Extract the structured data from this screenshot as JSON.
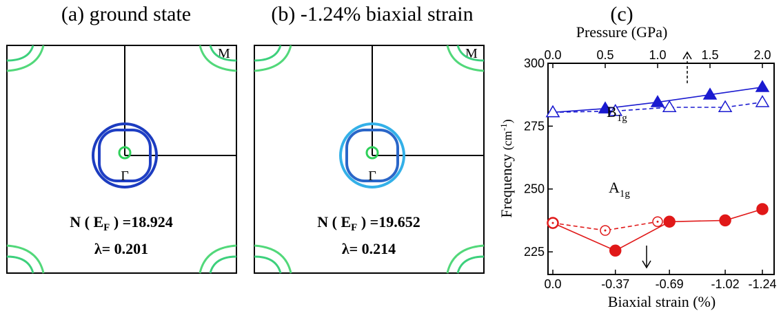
{
  "panel_a": {
    "title": "(a) ground state",
    "corner_label": "M",
    "gamma_label": "Γ",
    "nef_prefix": "N ( E",
    "nef_sub": "F",
    "nef_value": " ) =18.924",
    "lambda_text": "λ= 0.201",
    "colors": {
      "outer_ring": "#1c3cc0",
      "inner_ring": "#1f3fc4",
      "center": "#2fd05a",
      "corner": "#3ad08a"
    }
  },
  "panel_b": {
    "title": "(b) -1.24% biaxial strain",
    "corner_label": "M",
    "gamma_label": "Γ",
    "nef_prefix": "N ( E",
    "nef_sub": "F",
    "nef_value": " ) =19.652",
    "lambda_text": "λ= 0.214",
    "colors": {
      "outer_ring": "#33b0e8",
      "inner_ring": "#2a66c8",
      "center": "#2fd05a",
      "corner": "#3ad08a"
    }
  },
  "chart_data": {
    "type": "line",
    "panel_label": "(c)",
    "xlabel": "Biaxial strain (%)",
    "x2label": "Pressure (GPa)",
    "ylabel": "Frequency",
    "ylabel_unit_main": "(cm",
    "ylabel_unit_sup": "-1",
    "ylabel_unit_close": ")",
    "categories": [
      "0.0",
      "-0.37",
      "-0.69",
      "-1.02",
      "-1.24"
    ],
    "x": [
      0,
      0.37,
      0.69,
      1.02,
      1.24
    ],
    "x_top_ticks": [
      "0.0",
      "0.5",
      "1.0",
      "1.5",
      "2.0"
    ],
    "x_top_values": [
      0,
      0.5,
      1.0,
      1.5,
      2.0
    ],
    "ylim": [
      216,
      300
    ],
    "yticks": [
      225,
      250,
      275,
      300
    ],
    "series": [
      {
        "group": "B1g",
        "axis": "top",
        "marker": "filled-triangle",
        "line": "solid",
        "color": "#1a1ad0",
        "x": [
          0,
          0.5,
          1.0,
          1.5,
          2.0
        ],
        "values": [
          280.5,
          282.0,
          284.5,
          287.5,
          290.5
        ]
      },
      {
        "group": "B1g",
        "axis": "bottom",
        "marker": "open-triangle",
        "line": "dashed",
        "color": "#1a1ad0",
        "x": [
          0,
          0.37,
          0.69,
          1.02,
          1.24
        ],
        "values": [
          280.5,
          281.0,
          282.5,
          282.5,
          284.5
        ]
      },
      {
        "group": "A1g",
        "axis": "bottom",
        "marker": "filled-circle",
        "line": "solid",
        "color": "#e01818",
        "x": [
          0,
          0.37,
          0.69,
          1.02,
          1.24
        ],
        "values": [
          236.5,
          225.5,
          237.0,
          237.5,
          242.0
        ]
      },
      {
        "group": "A1g",
        "axis": "top",
        "marker": "open-circle",
        "line": "dashed",
        "color": "#e01818",
        "x": [
          0,
          0.5,
          1.0
        ],
        "values": [
          236.5,
          233.5,
          237.0
        ]
      }
    ],
    "annotations": {
      "b1g_main": "B",
      "b1g_sub": "1g",
      "a1g_main": "A",
      "a1g_sub": "1g"
    }
  }
}
